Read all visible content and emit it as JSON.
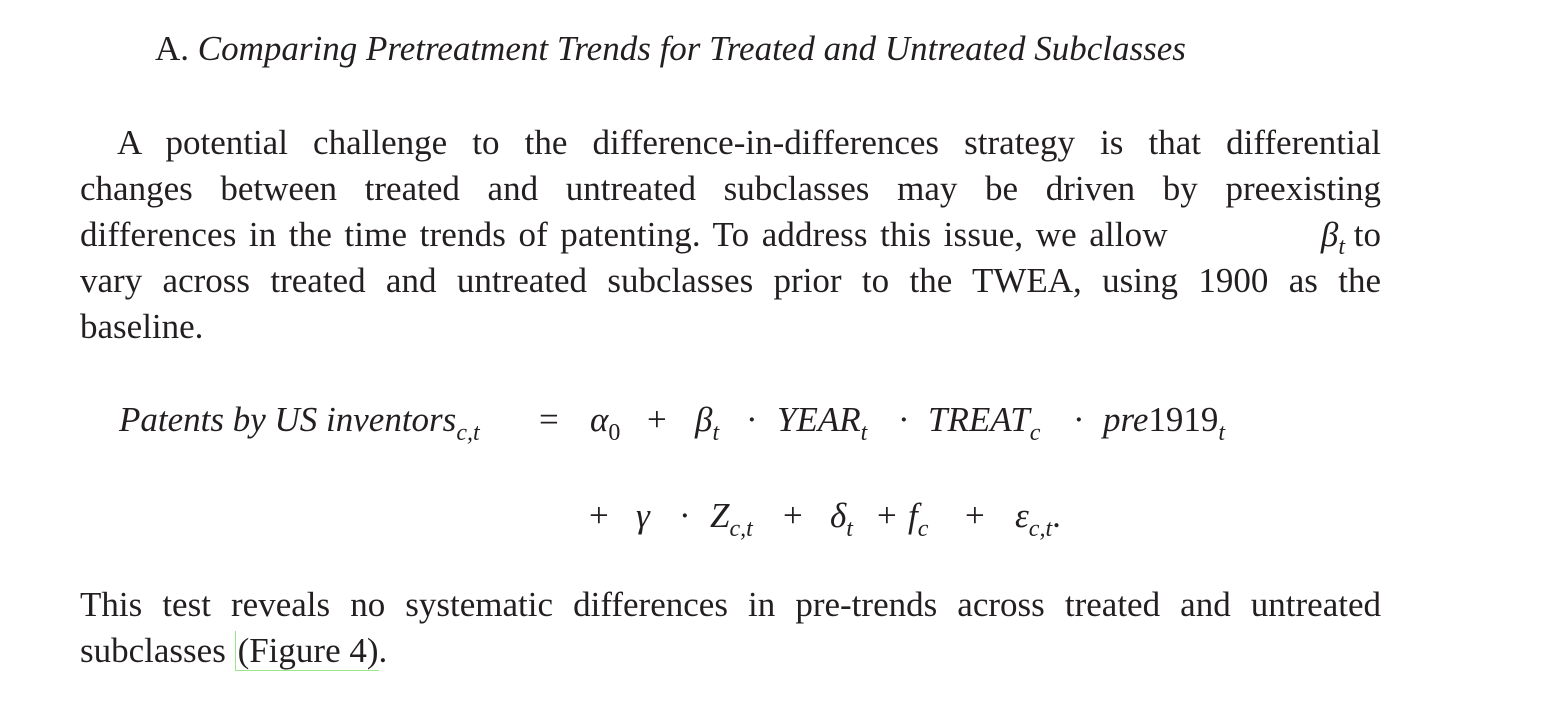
{
  "section": {
    "label": "A.",
    "title": "Comparing Pretreatment Trends for Treated and Untreated Subclasses"
  },
  "paragraph1": {
    "lines": [
      "A potential challenge to the difference-in-differences strategy is that differential",
      "changes between treated and untreated subclasses may be driven by preexisting",
      "differences in the time trends of patenting. To address this issue, we allow",
      "vary across treated and untreated subclasses prior to the TWEA, using 1900 as the",
      "baseline."
    ],
    "beta": "β",
    "beta_sub": "t",
    "after_beta": "to"
  },
  "equation": {
    "lhs": "Patents by US inventors",
    "lhs_sub": "c,t",
    "eq": "=",
    "alpha": "α",
    "alpha_sub": "0",
    "plus": "+",
    "dot": "·",
    "beta": "β",
    "beta_sub": "t",
    "year": "YEAR",
    "year_sub": "t",
    "treat": "TREAT",
    "treat_sub": "c",
    "pre": "pre",
    "pre_num": "1919",
    "pre_sub": "t",
    "gamma": "γ",
    "z": "Z",
    "z_sub": "c,t",
    "delta": "δ",
    "delta_sub": "t",
    "f": "f",
    "f_sub": "c",
    "eps": "ε",
    "eps_sub": "c,t",
    "end": "."
  },
  "paragraph2": {
    "line1": "This test reveals no systematic differences in pre-trends across treated and untreated",
    "line2_prefix": "subclasses ",
    "link": "(Figure 4)",
    "line2_suffix": "."
  }
}
